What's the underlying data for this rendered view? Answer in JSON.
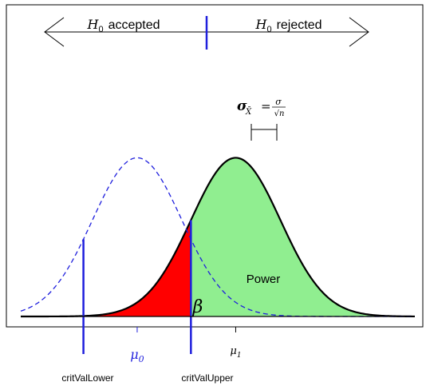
{
  "chart_data": {
    "type": "area",
    "title": "",
    "xlabel": "",
    "ylabel": "",
    "grid": false,
    "xlim": [
      -2.6,
      6.2
    ],
    "ylim": [
      0,
      0.446
    ],
    "distributions": [
      {
        "name": "H0",
        "mean": 0.0,
        "sd": 1.0,
        "line_style": "dashed",
        "color": "#1f1fdd"
      },
      {
        "name": "H1",
        "mean": 2.2,
        "sd": 1.0,
        "line_style": "solid",
        "color": "#000000"
      }
    ],
    "critical_values": {
      "lower": -1.2,
      "upper": 1.2
    },
    "regions": [
      {
        "label": "Power",
        "fill": "#90ee90"
      },
      {
        "label": "β",
        "fill": "#ff0000"
      }
    ],
    "ticks": [
      {
        "label": "μ0",
        "color": "#1f1fdd"
      },
      {
        "label": "μ1",
        "color": "#000000"
      }
    ],
    "top_annotations": {
      "accepted": {
        "symbol": "H",
        "sub": "0",
        "text": "accepted"
      },
      "rejected": {
        "symbol": "H",
        "sub": "0",
        "text": "rejected"
      }
    },
    "sigma_annotation": {
      "lhs": "σ",
      "sub": "X̄",
      "eq": "=",
      "num": "σ",
      "den": "√n"
    },
    "bottom_labels": {
      "lower": "critValLower",
      "upper": "critValUpper"
    },
    "colors": {
      "accent": "#1f1fdd",
      "power": "#90ee90",
      "beta": "#ff0000",
      "line": "#000000"
    }
  }
}
